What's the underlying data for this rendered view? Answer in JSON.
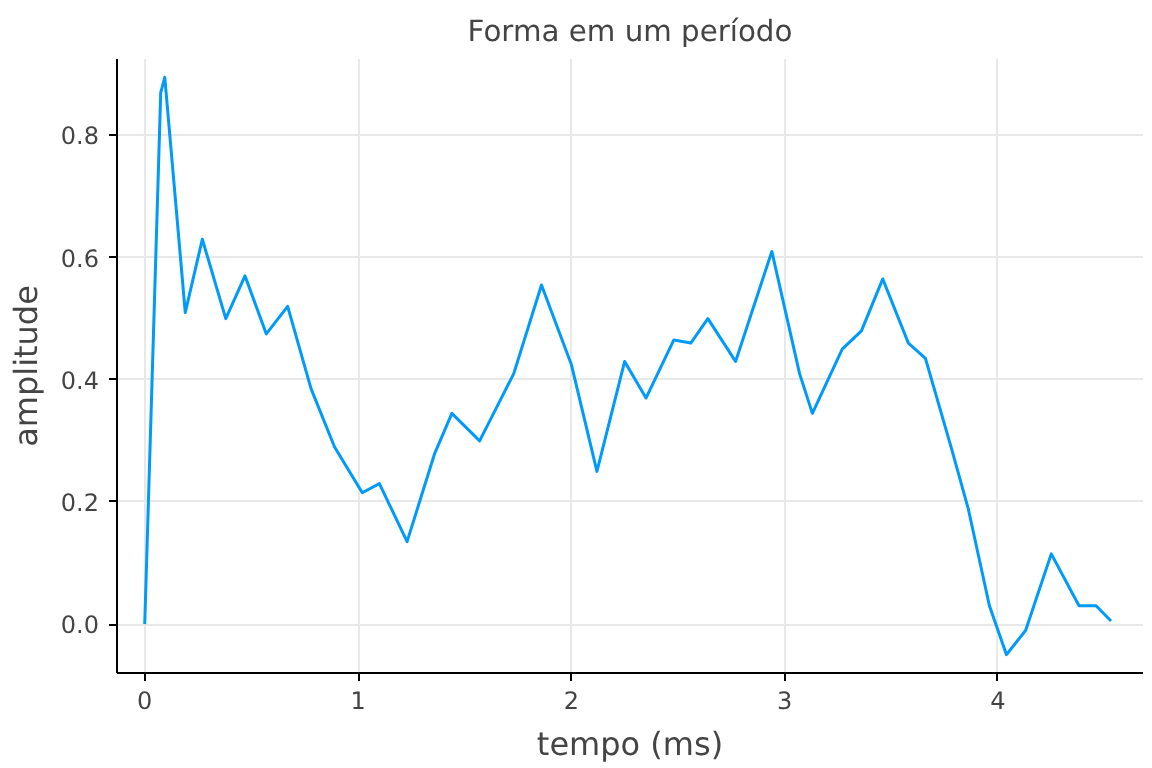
{
  "chart_data": {
    "type": "line",
    "title": "Forma em um período",
    "xlabel": "tempo (ms)",
    "ylabel": "amplitude",
    "x": [
      0,
      0.075,
      0.094,
      0.19,
      0.27,
      0.38,
      0.47,
      0.57,
      0.67,
      0.78,
      0.89,
      1.02,
      1.1,
      1.23,
      1.36,
      1.44,
      1.57,
      1.73,
      1.86,
      2.0,
      2.12,
      2.25,
      2.35,
      2.48,
      2.56,
      2.64,
      2.77,
      2.94,
      3.07,
      3.13,
      3.27,
      3.36,
      3.46,
      3.58,
      3.66,
      3.78,
      3.86,
      3.96,
      4.04,
      4.13,
      4.25,
      4.38,
      4.46,
      4.53
    ],
    "series": [
      {
        "color": "#009af9",
        "values": [
          0,
          0.87,
          0.895,
          0.51,
          0.63,
          0.5,
          0.57,
          0.475,
          0.52,
          0.385,
          0.29,
          0.215,
          0.23,
          0.135,
          0.28,
          0.345,
          0.3,
          0.41,
          0.555,
          0.425,
          0.25,
          0.43,
          0.37,
          0.465,
          0.46,
          0.5,
          0.43,
          0.61,
          0.41,
          0.345,
          0.45,
          0.48,
          0.565,
          0.46,
          0.435,
          0.29,
          0.19,
          0.03,
          -0.05,
          -0.01,
          0.115,
          0.03,
          0.03,
          0.005
        ]
      }
    ],
    "xlim": [
      -0.13,
      4.68
    ],
    "ylim": [
      -0.08,
      0.925
    ],
    "xticks": [
      0,
      1,
      2,
      3,
      4
    ],
    "yticks": [
      {
        "value": 0,
        "label": "0.0"
      },
      0.2,
      0.4,
      0.6,
      0.8
    ],
    "grid": true,
    "line_style": "solid"
  }
}
